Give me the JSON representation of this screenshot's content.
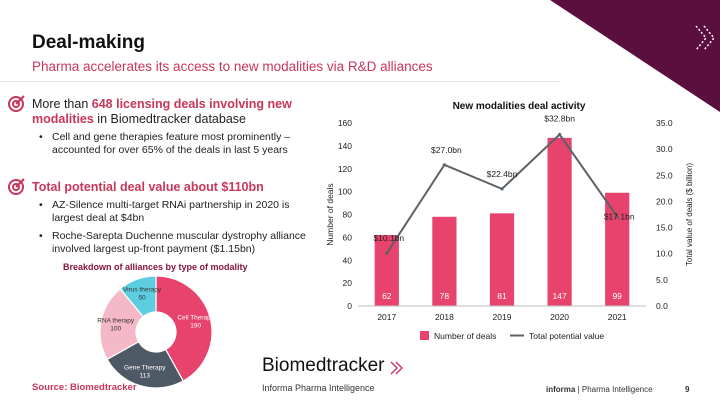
{
  "header": {
    "title": "Deal-making",
    "subtitle": "Pharma accelerates its access to new modalities via R&D alliances"
  },
  "bullets": [
    {
      "lead_prefix": "More than ",
      "lead_highlight": "648 licensing deals involving new modalities",
      "lead_suffix": " in Biomedtracker database",
      "subs": [
        "Cell and gene therapies feature most prominently – accounted for over 65% of the deals in last 5 years"
      ]
    },
    {
      "lead": "Total potential deal value about $110bn",
      "subs": [
        "AZ-Silence multi-target RNAi partnership in 2020 is largest deal at $4bn",
        "Roche-Sarepta Duchenne muscular dystrophy alliance involved largest up-front payment ($1.15bn)"
      ]
    }
  ],
  "donut": {
    "title": "Breakdown of alliances by type of modality",
    "segments": [
      {
        "label": "Cell Therapy",
        "value": 190,
        "color": "#e8436c"
      },
      {
        "label": "Gene Therapy",
        "value": 113,
        "color": "#4d5964"
      },
      {
        "label": "RNA therapy",
        "value": 100,
        "color": "#f4b8c8"
      },
      {
        "label": "Virus therapy",
        "value": 50,
        "color": "#5dcde0"
      }
    ]
  },
  "chart_data": {
    "type": "bar",
    "title": "New modalities deal activity",
    "categories": [
      "2017",
      "2018",
      "2019",
      "2020",
      "2021"
    ],
    "series": [
      {
        "name": "Number of deals",
        "type": "bar",
        "axis": "left",
        "values": [
          62,
          78,
          81,
          147,
          99
        ],
        "color": "#e8436c"
      },
      {
        "name": "Total potential value",
        "type": "line",
        "axis": "right",
        "values": [
          10.1,
          27.0,
          22.4,
          32.8,
          17.1
        ],
        "color": "#5a6268"
      }
    ],
    "line_labels": [
      "$10.1bn",
      "$27.0bn",
      "$22.4bn",
      "$32.8bn",
      "$17.1bn"
    ],
    "ylabel": "Number of deals",
    "y2label": "Total value of deals ($ billion)",
    "ylim": [
      0,
      160
    ],
    "yticks": [
      "0",
      "20",
      "40",
      "60",
      "80",
      "100",
      "120",
      "140",
      "160"
    ],
    "y2lim": [
      0,
      35
    ],
    "y2ticks": [
      "0.0",
      "5.0",
      "10.0",
      "15.0",
      "20.0",
      "25.0",
      "30.0",
      "35.0"
    ],
    "grid": false,
    "legend": "bottom"
  },
  "footer": {
    "source": "Source: Biomedtracker",
    "logo_name": "Biomedtracker",
    "logo_sub": "Informa Pharma Intelligence",
    "brand_bold": "informa",
    "brand_rest": " | Pharma Intelligence",
    "page": "9"
  },
  "colors": {
    "accent": "#c8365b",
    "corner": "#5b0f3e",
    "bar": "#e8436c",
    "line": "#5a6268"
  }
}
